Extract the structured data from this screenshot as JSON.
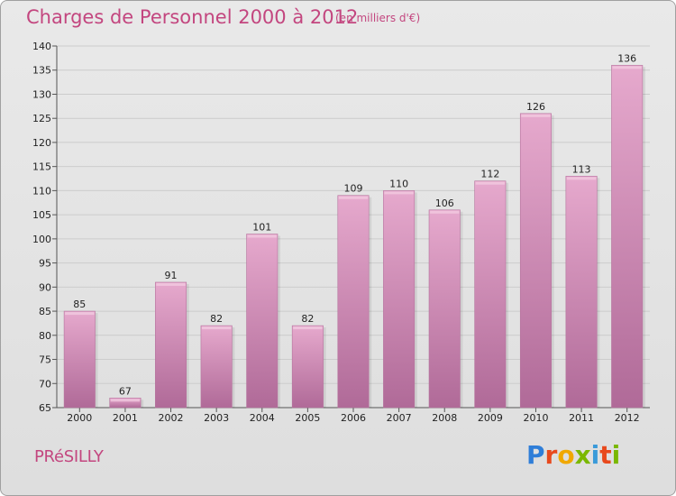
{
  "header": {
    "title": "Charges de Personnel 2000 à 2012",
    "subtitle": "(en milliers d'€)"
  },
  "footer": {
    "commune": "PRéSILLY",
    "logo_letters": [
      "P",
      "r",
      "o",
      "x",
      "i",
      "t",
      "i"
    ],
    "logo_colors": [
      "#2f7ed8",
      "#e8491d",
      "#f0a800",
      "#7ab800",
      "#3a9ad9",
      "#e8491d",
      "#7ab800"
    ]
  },
  "chart_data": {
    "type": "bar",
    "title": "Charges de Personnel 2000 à 2012",
    "subtitle": "(en milliers d'€)",
    "categories": [
      "2000",
      "2001",
      "2002",
      "2003",
      "2004",
      "2005",
      "2006",
      "2007",
      "2008",
      "2009",
      "2010",
      "2011",
      "2012"
    ],
    "values": [
      85,
      67,
      91,
      82,
      101,
      82,
      109,
      110,
      106,
      112,
      126,
      113,
      136
    ],
    "ylim": [
      65,
      140
    ],
    "yticks": [
      65,
      70,
      75,
      80,
      85,
      90,
      95,
      100,
      105,
      110,
      115,
      120,
      125,
      130,
      135,
      140
    ],
    "bar_color": "#d98bb7",
    "grid": true
  }
}
